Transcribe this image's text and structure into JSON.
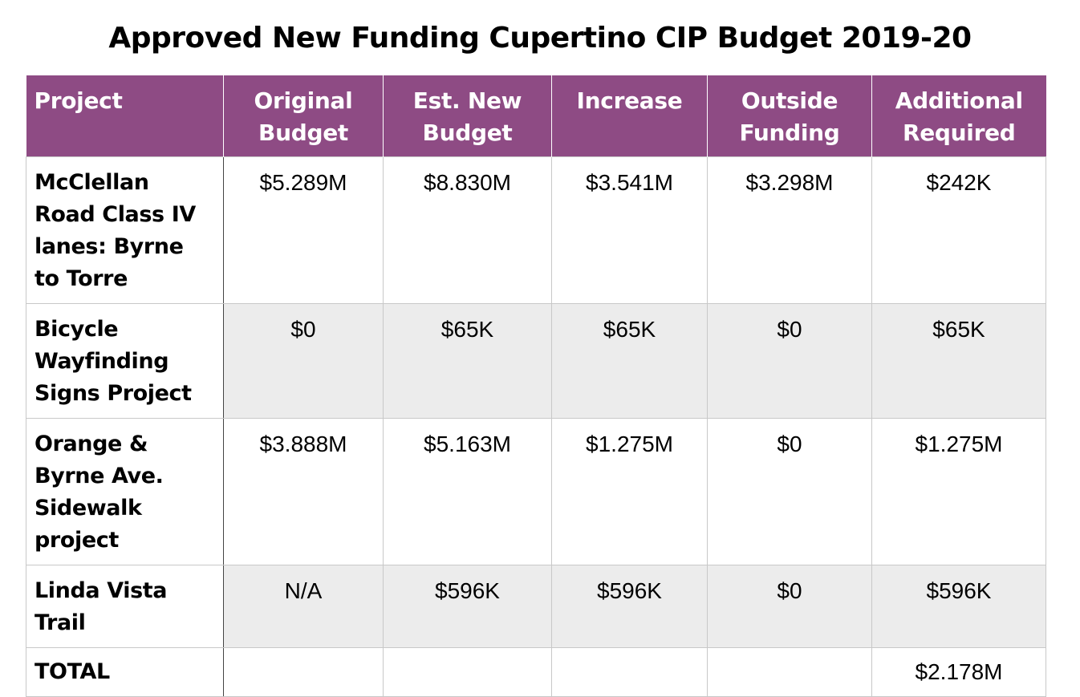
{
  "title": "Approved New Funding Cupertino CIP Budget 2019-20",
  "colors": {
    "header_bg": "#8e4b84",
    "header_text": "#ffffff",
    "alt_row_bg": "#ececec"
  },
  "table": {
    "headers": {
      "project": "Project",
      "original_budget": "Original Budget",
      "est_new_budget": "Est. New Budget",
      "increase": "Increase",
      "outside_funding": "Outside Funding",
      "additional_required": "Additional Required"
    },
    "rows": [
      {
        "project": "McClellan Road Class IV lanes: Byrne to Torre",
        "original_budget": "$5.289M",
        "est_new_budget": "$8.830M",
        "increase": "$3.541M",
        "outside_funding": "$3.298M",
        "additional_required": "$242K"
      },
      {
        "project": "Bicycle Wayfinding Signs Project",
        "original_budget": "$0",
        "est_new_budget": "$65K",
        "increase": "$65K",
        "outside_funding": "$0",
        "additional_required": "$65K"
      },
      {
        "project": "Orange & Byrne Ave. Sidewalk project",
        "original_budget": "$3.888M",
        "est_new_budget": "$5.163M",
        "increase": "$1.275M",
        "outside_funding": "$0",
        "additional_required": "$1.275M"
      },
      {
        "project": "Linda Vista Trail",
        "original_budget": "N/A",
        "est_new_budget": "$596K",
        "increase": "$596K",
        "outside_funding": "$0",
        "additional_required": "$596K"
      },
      {
        "project": "TOTAL",
        "original_budget": "",
        "est_new_budget": "",
        "increase": "",
        "outside_funding": "",
        "additional_required": "$2.178M"
      }
    ]
  }
}
